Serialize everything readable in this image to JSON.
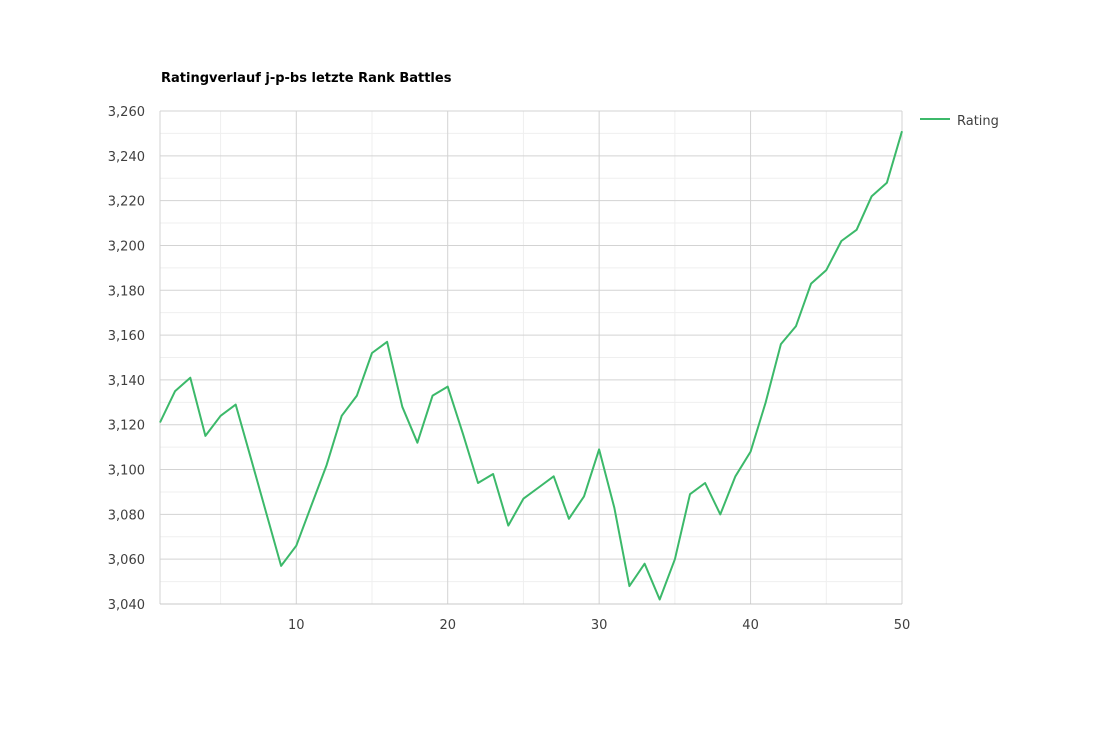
{
  "chart_data": {
    "type": "line",
    "title": "Ratingverlauf j-p-bs letzte Rank Battles",
    "xlabel": "",
    "ylabel": "",
    "xlim": [
      1,
      50
    ],
    "ylim": [
      3040,
      3260
    ],
    "x_ticks": [
      10,
      20,
      30,
      40,
      50
    ],
    "x_tick_labels": [
      "10",
      "20",
      "30",
      "40",
      "50"
    ],
    "y_ticks": [
      3040,
      3060,
      3080,
      3100,
      3120,
      3140,
      3160,
      3180,
      3200,
      3220,
      3240,
      3260
    ],
    "y_tick_labels": [
      "3,040",
      "3,060",
      "3,080",
      "3,100",
      "3,120",
      "3,140",
      "3,160",
      "3,180",
      "3,200",
      "3,220",
      "3,240",
      "3,260"
    ],
    "grid": true,
    "legend_position": "right",
    "series": [
      {
        "name": "Rating",
        "color": "#3cb96a",
        "x": [
          1,
          2,
          3,
          4,
          5,
          6,
          7,
          8,
          9,
          10,
          11,
          12,
          13,
          14,
          15,
          16,
          17,
          18,
          19,
          20,
          21,
          22,
          23,
          24,
          25,
          26,
          27,
          28,
          29,
          30,
          31,
          32,
          33,
          34,
          35,
          36,
          37,
          38,
          39,
          40,
          41,
          42,
          43,
          44,
          45,
          46,
          47,
          48,
          49,
          50
        ],
        "values": [
          3121,
          3135,
          3141,
          3115,
          3124,
          3129,
          3105,
          3081,
          3057,
          3066,
          3084,
          3102,
          3124,
          3133,
          3152,
          3157,
          3128,
          3112,
          3133,
          3137,
          3116,
          3094,
          3098,
          3075,
          3087,
          3092,
          3097,
          3078,
          3088,
          3109,
          3083,
          3048,
          3058,
          3042,
          3060,
          3089,
          3094,
          3080,
          3097,
          3108,
          3130,
          3156,
          3164,
          3183,
          3189,
          3202,
          3207,
          3222,
          3228,
          3251
        ]
      }
    ]
  }
}
